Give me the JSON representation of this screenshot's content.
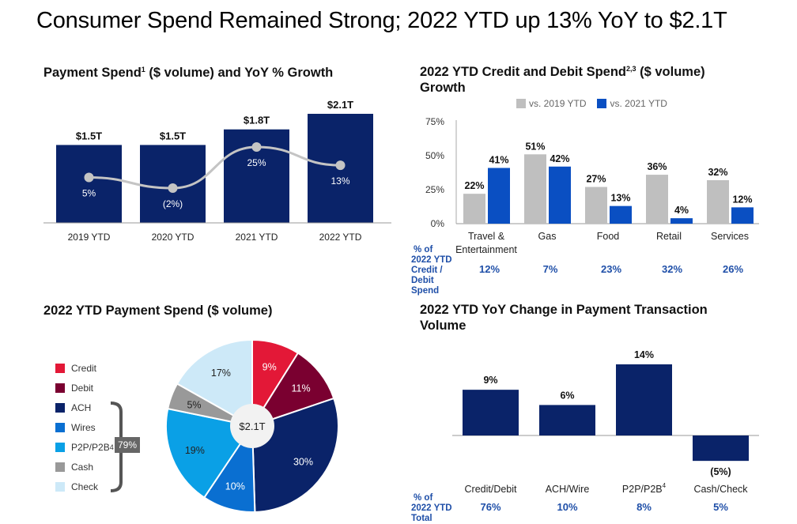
{
  "title": "Consumer Spend Remained Strong; 2022 YTD up 13% YoY to $2.1T",
  "colors": {
    "navy": "#0a2369",
    "blue": "#0a4fc2",
    "gray": "#bfbfbf",
    "line": "#c4c4c4",
    "pct_blue": "#1f4fa8"
  },
  "chart_data": [
    {
      "id": "payment-spend",
      "type": "bar",
      "title": "Payment Spend",
      "title_sup": "1",
      "title_rest": " ($ volume) and YoY % Growth",
      "categories": [
        "2019 YTD",
        "2020 YTD",
        "2021 YTD",
        "2022 YTD"
      ],
      "values": [
        1.5,
        1.5,
        1.8,
        2.1
      ],
      "value_labels": [
        "$1.5T",
        "$1.5T",
        "$1.8T",
        "$2.1T"
      ],
      "unit": "$T",
      "line_series": {
        "name": "YoY % Growth",
        "values": [
          5,
          -2,
          25,
          13
        ],
        "labels": [
          "5%",
          "(2%)",
          "25%",
          "13%"
        ]
      }
    },
    {
      "id": "credit-debit-growth",
      "type": "bar",
      "title": "2022 YTD Credit and Debit Spend",
      "title_sup": "2,3",
      "title_rest": " ($ volume) Growth",
      "categories": [
        "Travel & Entertainment",
        "Gas",
        "Food",
        "Retail",
        "Services"
      ],
      "category_lines": [
        [
          "Travel &",
          "Entertainment"
        ],
        [
          "Gas"
        ],
        [
          "Food"
        ],
        [
          "Retail"
        ],
        [
          "Services"
        ]
      ],
      "series": [
        {
          "name": "vs. 2019 YTD",
          "values": [
            22,
            51,
            27,
            36,
            32
          ],
          "labels": [
            "22%",
            "51%",
            "27%",
            "36%",
            "32%"
          ],
          "color": "#bfbfbf"
        },
        {
          "name": "vs. 2021 YTD",
          "values": [
            41,
            42,
            13,
            4,
            12
          ],
          "labels": [
            "41%",
            "42%",
            "13%",
            "4%",
            "12%"
          ],
          "color": "#0a4fc2"
        }
      ],
      "ylim": [
        0,
        75
      ],
      "yticks": [
        "0%",
        "25%",
        "50%",
        "75%"
      ],
      "legend": "top",
      "share_row": {
        "label_lines": [
          "% of",
          "2022 YTD",
          "Credit /",
          "Debit",
          "Spend"
        ],
        "values": [
          "12%",
          "7%",
          "23%",
          "32%",
          "26%"
        ]
      }
    },
    {
      "id": "payment-mix",
      "type": "pie",
      "title": "2022 YTD Payment Spend",
      "title_rest": " ($ volume)",
      "center_label": "$2.1T",
      "slices": [
        {
          "name": "Credit",
          "value": 9,
          "label": "9%",
          "color": "#e31837"
        },
        {
          "name": "Debit",
          "value": 11,
          "label": "11%",
          "color": "#7a0030"
        },
        {
          "name": "ACH",
          "value": 30,
          "label": "30%",
          "color": "#0a2369"
        },
        {
          "name": "Wires",
          "value": 10,
          "label": "10%",
          "color": "#0a6fd1"
        },
        {
          "name": "P2P/P2B",
          "value": 19,
          "label": "19%",
          "color": "#0aa0e6"
        },
        {
          "name": "Cash",
          "value": 5,
          "label": "5%",
          "color": "#999999"
        },
        {
          "name": "Check",
          "value": 17,
          "label": "17%",
          "color": "#cde9f8"
        }
      ],
      "legend_sup_on": "P2P/P2B",
      "legend_sup": "4",
      "bracket_label": "79%",
      "legend": "left"
    },
    {
      "id": "txn-volume",
      "type": "bar",
      "title": "2022 YTD YoY Change in Payment Transaction Volume",
      "categories": [
        "Credit/Debit",
        "ACH/Wire",
        "P2P/P2B",
        "Cash/Check"
      ],
      "category_sup": [
        "",
        "",
        "4",
        ""
      ],
      "values": [
        9,
        6,
        14,
        -5
      ],
      "value_labels": [
        "9%",
        "6%",
        "14%",
        "(5%)"
      ],
      "share_row": {
        "label_lines": [
          "% of",
          "2022 YTD",
          "Total"
        ],
        "values": [
          "76%",
          "10%",
          "8%",
          "5%"
        ]
      }
    }
  ]
}
